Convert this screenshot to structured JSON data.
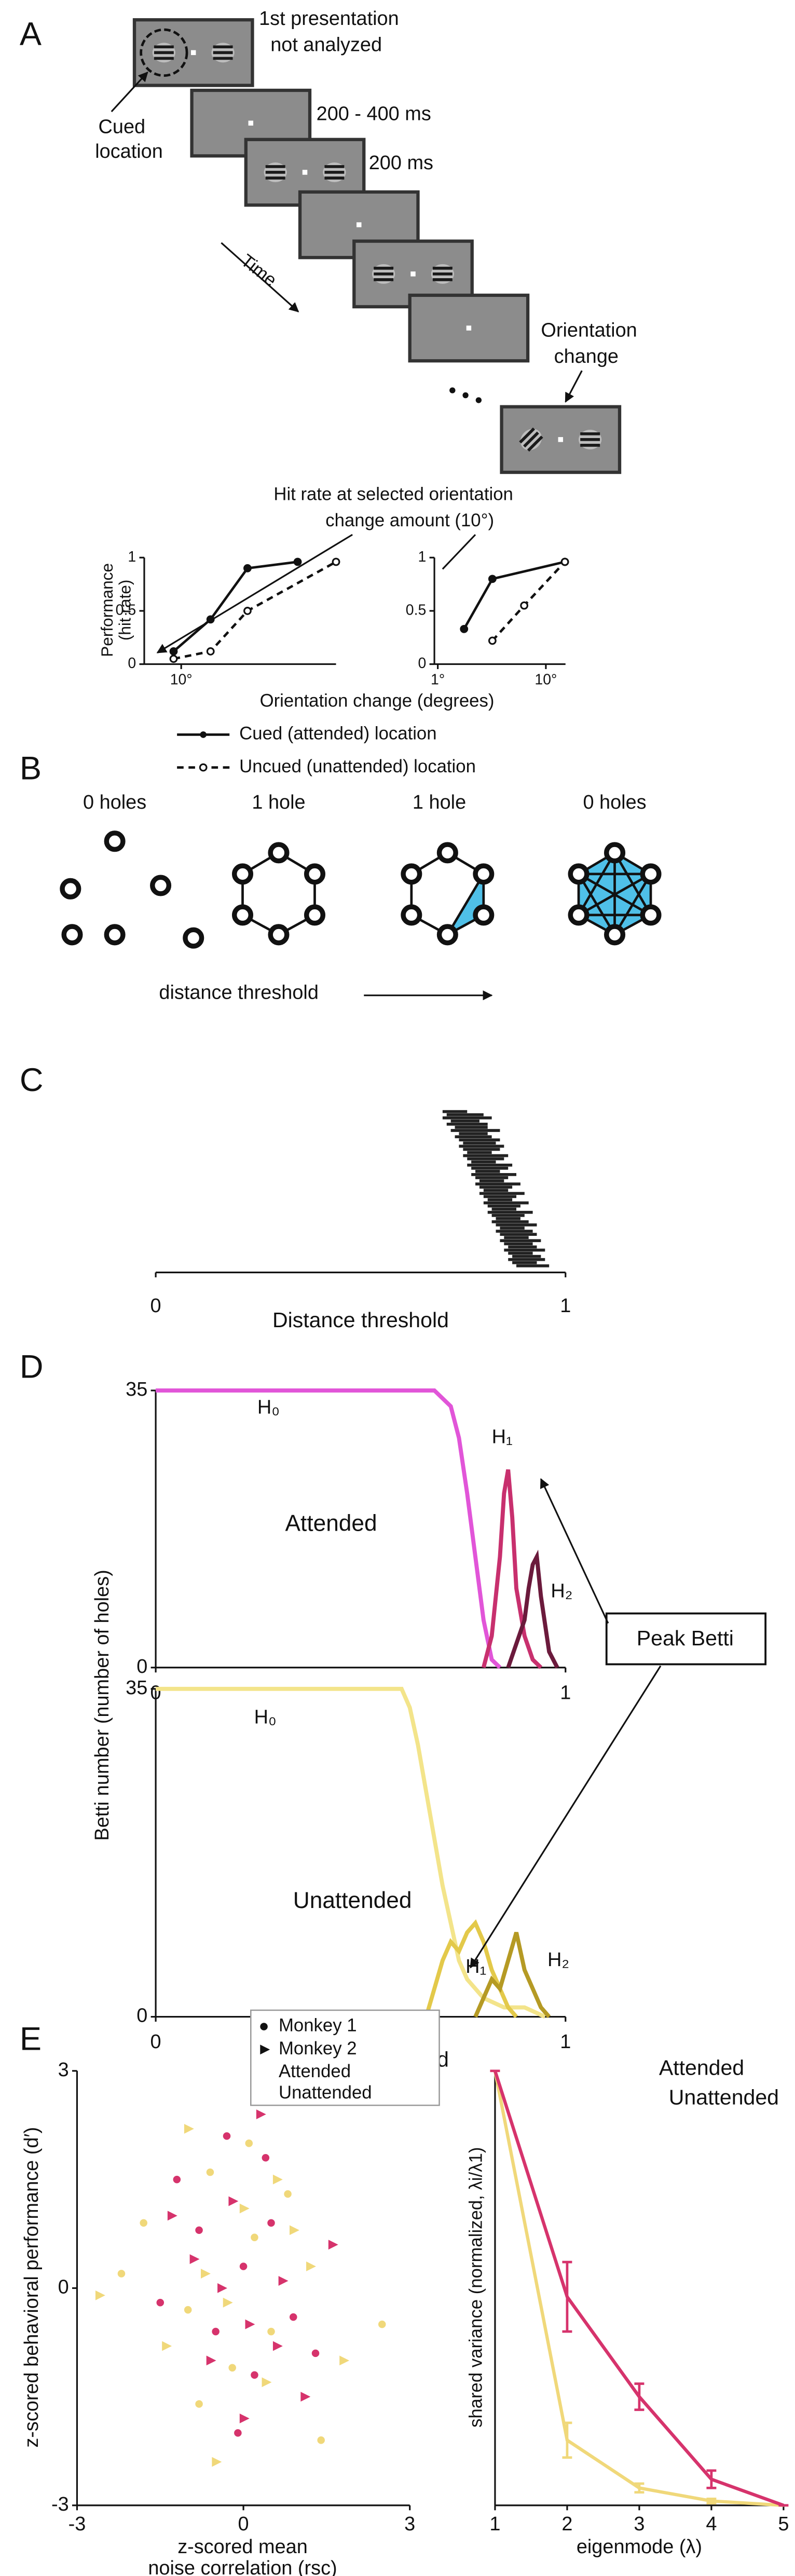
{
  "panel_labels": [
    "A",
    "B",
    "C",
    "D",
    "E"
  ],
  "panel_a": {
    "presentation_1": "1st presentation",
    "not_analyzed": "not analyzed",
    "isi": "200 - 400 ms",
    "stim": "200 ms",
    "orientation": "Orientation",
    "change": "change",
    "cued": "Cued",
    "location": "location",
    "time": "Time",
    "hit_rate_1": "Hit rate at selected orientation",
    "hit_rate_2": "change amount (10°)",
    "ylabel_1": "Performance",
    "ylabel_2": "(hit rate)",
    "xlabel": "Orientation change (degrees)",
    "legend": [
      "Cued (attended) location",
      "Uncued (unattended) location"
    ],
    "plots": [
      {
        "type": "line",
        "xscale": "log",
        "xlim": [
          6,
          85
        ],
        "ylim": [
          0,
          1
        ],
        "xticks": [
          {
            "value": 10,
            "label": "10°"
          }
        ],
        "yticks": [
          0,
          0.5,
          1
        ],
        "cued": {
          "x": [
            9,
            15,
            25,
            50
          ],
          "y": [
            0.12,
            0.42,
            0.9,
            0.96
          ]
        },
        "uncued": {
          "x": [
            9,
            15,
            25,
            85
          ],
          "y": [
            0.05,
            0.12,
            0.5,
            0.96
          ]
        }
      },
      {
        "type": "line",
        "xscale": "log",
        "xlim": [
          0.93,
          15.2
        ],
        "ylim": [
          0,
          1
        ],
        "xticks": [
          {
            "value": 1,
            "label": "1°"
          },
          {
            "value": 10,
            "label": "10°"
          }
        ],
        "yticks": [
          0,
          0.5,
          1
        ],
        "cued": {
          "x": [
            1.75,
            3.2,
            15
          ],
          "y": [
            0.33,
            0.8,
            0.96
          ]
        },
        "uncued": {
          "x": [
            3.2,
            6.3,
            15
          ],
          "y": [
            0.22,
            0.55,
            0.96
          ]
        }
      }
    ]
  },
  "panel_b": {
    "labels": [
      "0 holes",
      "1 hole",
      "1 hole",
      "0 holes"
    ],
    "axis": "distance threshold"
  },
  "panel_c": {
    "type": "barcode",
    "xlabel": "Distance threshold",
    "xlim": [
      0,
      1
    ],
    "xticks": [
      0,
      1
    ],
    "color": "#222222",
    "starts": [
      0.7,
      0.71,
      0.7,
      0.72,
      0.71,
      0.73,
      0.72,
      0.74,
      0.73,
      0.74,
      0.75,
      0.74,
      0.75,
      0.76,
      0.75,
      0.76,
      0.77,
      0.76,
      0.77,
      0.78,
      0.77,
      0.78,
      0.79,
      0.78,
      0.79,
      0.8,
      0.79,
      0.8,
      0.81,
      0.8,
      0.81,
      0.82,
      0.81,
      0.82,
      0.83,
      0.82,
      0.83,
      0.84,
      0.83,
      0.84,
      0.85,
      0.84,
      0.85,
      0.86,
      0.85,
      0.86,
      0.87,
      0.86,
      0.87,
      0.88
    ],
    "ends": [
      0.76,
      0.8,
      0.82,
      0.79,
      0.81,
      0.81,
      0.84,
      0.81,
      0.82,
      0.84,
      0.83,
      0.85,
      0.84,
      0.82,
      0.86,
      0.85,
      0.83,
      0.87,
      0.86,
      0.84,
      0.88,
      0.86,
      0.85,
      0.89,
      0.87,
      0.86,
      0.9,
      0.88,
      0.87,
      0.91,
      0.89,
      0.88,
      0.92,
      0.9,
      0.89,
      0.91,
      0.93,
      0.9,
      0.92,
      0.93,
      0.91,
      0.94,
      0.92,
      0.93,
      0.95,
      0.92,
      0.94,
      0.95,
      0.93,
      0.96
    ]
  },
  "panel_d": {
    "ylabel": "Betti number (number of holes)",
    "xlabel": "Distance threshold",
    "annotation": "Peak Betti",
    "plots": [
      {
        "type": "line",
        "name": "Attended",
        "color": "#d2397a",
        "xlim": [
          0,
          1
        ],
        "ylim": [
          0,
          35
        ],
        "xticks": [
          0,
          1
        ],
        "yticks": [
          0,
          35
        ],
        "series": [
          {
            "name": "H₀",
            "color": "#e155d8",
            "x": [
              0,
              0.5,
              0.68,
              0.7,
              0.72,
              0.74,
              0.76,
              0.78,
              0.8,
              0.82,
              0.84
            ],
            "values": [
              35,
              35,
              35,
              34,
              33,
              29,
              22,
              14,
              6,
              1,
              0
            ]
          },
          {
            "name": "H₁",
            "color": "#c8306e",
            "x": [
              0.8,
              0.82,
              0.84,
              0.85,
              0.86,
              0.87,
              0.88,
              0.9,
              0.92,
              0.94
            ],
            "values": [
              0,
              4,
              14,
              22,
              25,
              19,
              10,
              4,
              1,
              0
            ]
          },
          {
            "name": "H₂",
            "color": "#6b1a3c",
            "x": [
              0.86,
              0.88,
              0.9,
              0.91,
              0.92,
              0.93,
              0.94,
              0.96,
              0.98
            ],
            "values": [
              0,
              3,
              6,
              10,
              13,
              14,
              9,
              2,
              0
            ]
          }
        ]
      },
      {
        "type": "line",
        "name": "Unattended",
        "color": "#e3c94a",
        "xlim": [
          0,
          1
        ],
        "ylim": [
          0,
          35
        ],
        "xticks": [
          0,
          1
        ],
        "yticks": [
          0,
          35
        ],
        "series": [
          {
            "name": "H₀",
            "color": "#f3e48a",
            "x": [
              0,
              0.6,
              0.62,
              0.64,
              0.66,
              0.68,
              0.7,
              0.72,
              0.74,
              0.76,
              0.78,
              0.8,
              0.85,
              0.9,
              0.95
            ],
            "values": [
              35,
              35,
              33,
              29,
              24,
              19,
              14,
              10,
              6,
              4,
              3,
              2,
              1,
              1,
              0
            ]
          },
          {
            "name": "H₁",
            "color": "#e3c94a",
            "x": [
              0.66,
              0.68,
              0.7,
              0.72,
              0.74,
              0.76,
              0.78,
              0.8,
              0.82,
              0.84,
              0.86,
              0.88
            ],
            "values": [
              0,
              3,
              6,
              8,
              7,
              9,
              10,
              8,
              5,
              3,
              1,
              0
            ]
          },
          {
            "name": "H₂",
            "color": "#b59a24",
            "x": [
              0.78,
              0.8,
              0.82,
              0.84,
              0.86,
              0.88,
              0.9,
              0.92,
              0.94,
              0.96
            ],
            "values": [
              0,
              2,
              4,
              3,
              6,
              9,
              5,
              3,
              1,
              0
            ]
          }
        ]
      }
    ]
  },
  "panel_e": {
    "scatter": {
      "type": "scatter",
      "ylabel": "z-scored behavioral performance (d′)",
      "xlabel_1": "z-scored mean",
      "xlabel_2": "noise correlation (rsc)",
      "xlim": [
        -3,
        3
      ],
      "ylim": [
        -3,
        3
      ],
      "xticks": [
        -3,
        0,
        3
      ],
      "yticks": [
        -3,
        0,
        3
      ],
      "markers": [
        {
          "name": "Monkey 1",
          "shape": "circle"
        },
        {
          "name": "Monkey 2",
          "shape": "triangle"
        }
      ],
      "groups": [
        {
          "name": "Attended",
          "color": "#d6336c"
        },
        {
          "name": "Unattended",
          "color": "#f0d87a"
        }
      ],
      "series": [
        {
          "group": 1,
          "marker": 0,
          "x": [
            -1.8,
            -1.0,
            -0.6,
            -0.2,
            0.2,
            0.5,
            0.8,
            1.4,
            -0.8,
            0.1,
            2.5,
            -2.2
          ],
          "y": [
            0.9,
            -0.3,
            1.6,
            -1.1,
            0.7,
            -0.6,
            1.3,
            -2.1,
            -1.6,
            2.0,
            -0.5,
            0.2
          ]
        },
        {
          "group": 1,
          "marker": 1,
          "x": [
            -1.4,
            -0.7,
            -0.3,
            0.0,
            0.4,
            0.9,
            1.2,
            -1.0,
            -0.5,
            0.6,
            1.8,
            -2.6
          ],
          "y": [
            -0.8,
            0.2,
            -0.2,
            1.1,
            -1.3,
            0.8,
            0.3,
            2.2,
            -2.4,
            1.5,
            -1.0,
            -0.1
          ]
        },
        {
          "group": 0,
          "marker": 0,
          "x": [
            -1.2,
            -0.8,
            -0.5,
            -0.3,
            0,
            0.2,
            0.5,
            0.9,
            -1.5,
            -0.1,
            0.4,
            1.3
          ],
          "y": [
            1.5,
            0.8,
            -0.6,
            2.1,
            0.3,
            -1.2,
            0.9,
            -0.4,
            -0.2,
            -2.0,
            1.8,
            -0.9
          ]
        },
        {
          "group": 0,
          "marker": 1,
          "x": [
            -0.9,
            -0.6,
            -0.2,
            0.1,
            0.3,
            0.7,
            1.1,
            -1.3,
            0.0,
            0.6,
            1.6,
            -0.4
          ],
          "y": [
            0.4,
            -1.0,
            1.2,
            -0.5,
            2.4,
            0.1,
            -1.5,
            1.0,
            -1.8,
            -0.8,
            0.6,
            0.0
          ]
        }
      ]
    },
    "eigen": {
      "type": "line",
      "ylabel": "shared variance (normalized, λi/λ1)",
      "xlabel": "eigenmode (λ)",
      "x": [
        1,
        2,
        3,
        4,
        5
      ],
      "xlim": [
        1,
        5
      ],
      "ylim": [
        0,
        1
      ],
      "xticks": [
        1,
        2,
        3,
        4,
        5
      ],
      "series": [
        {
          "name": "Attended",
          "color": "#d6336c",
          "values": [
            1,
            0.48,
            0.25,
            0.06,
            0
          ],
          "errors": [
            0,
            0.08,
            0.03,
            0.02,
            0
          ]
        },
        {
          "name": "Unattended",
          "color": "#f0d87a",
          "values": [
            1,
            0.15,
            0.04,
            0.01,
            0
          ],
          "errors": [
            0,
            0.04,
            0.01,
            0.005,
            0
          ]
        }
      ]
    }
  }
}
